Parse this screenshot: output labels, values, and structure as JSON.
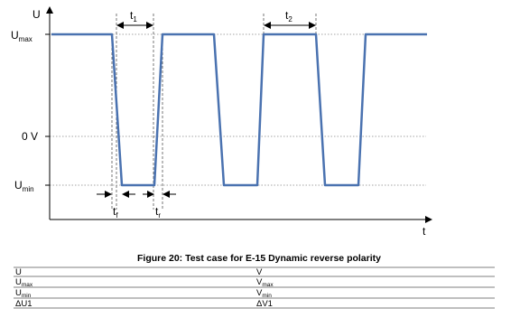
{
  "diagram": {
    "y_axis_label": "U",
    "x_axis_label": "t",
    "levels": [
      {
        "base": "U",
        "sub": "max"
      },
      {
        "base": "0 V"
      },
      {
        "base": "U",
        "sub": "min"
      }
    ],
    "intervals": [
      {
        "base": "t",
        "sub": "1"
      },
      {
        "base": "t",
        "sub": "2"
      },
      {
        "base": "t",
        "sub": "f"
      },
      {
        "base": "t",
        "sub": "r"
      }
    ]
  },
  "caption": "Figure 20: Test case for E-15 Dynamic reverse polarity",
  "table": {
    "rows": [
      [
        {
          "base": "U"
        },
        {
          "base": "V"
        }
      ],
      [
        {
          "base": "U",
          "sub": "max"
        },
        {
          "base": "V",
          "sub": "max"
        }
      ],
      [
        {
          "base": "U",
          "sub": "min"
        },
        {
          "base": "V",
          "sub": "min"
        }
      ],
      [
        {
          "base": "ΔU1"
        },
        {
          "base": "ΔV1"
        }
      ]
    ]
  }
}
